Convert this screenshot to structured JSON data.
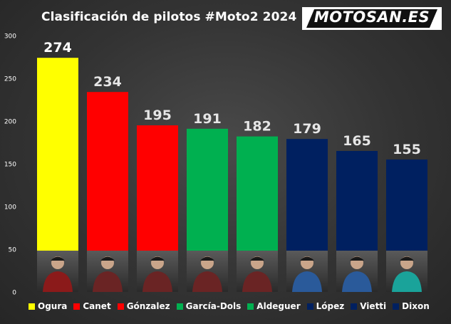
{
  "title": "Clasificación de pilotos #Moto2 2024",
  "logo": {
    "text": "MOTOSAN.ES"
  },
  "chart_data": {
    "type": "bar",
    "title": "Clasificación de pilotos #Moto2 2024",
    "categories": [
      "Ogura",
      "Canet",
      "Gónzalez",
      "García-Dols",
      "Aldeguer",
      "López",
      "Vietti",
      "Dixon"
    ],
    "values": [
      274,
      234,
      195,
      191,
      182,
      179,
      165,
      155
    ],
    "colors": [
      "#ffff00",
      "#ff0000",
      "#ff0000",
      "#00b050",
      "#00b050",
      "#002060",
      "#002060",
      "#002060"
    ],
    "ylim": [
      0,
      300
    ],
    "yticks": [
      0,
      50,
      100,
      150,
      200,
      250,
      300
    ],
    "grid": false,
    "legend": "bottom",
    "xlabel": "",
    "ylabel": ""
  }
}
